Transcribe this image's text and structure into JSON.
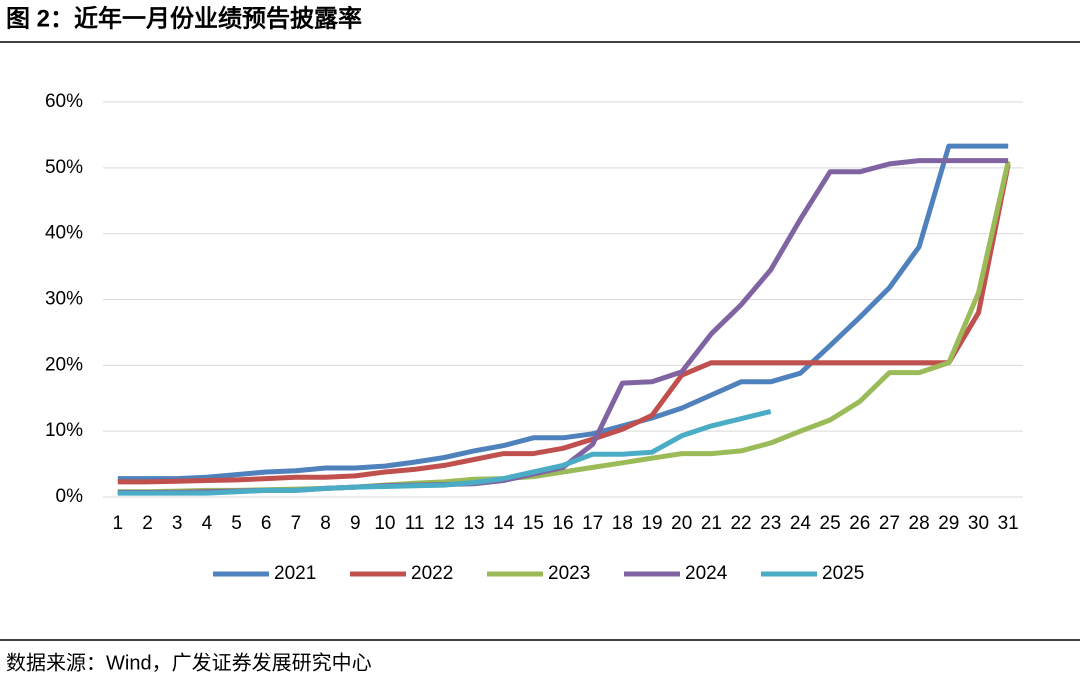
{
  "chart_data": {
    "type": "line",
    "title": "图 2：近年一月份业绩预告披露率",
    "source": "数据来源：Wind，广发证券发展研究中心",
    "categories": [
      "1",
      "2",
      "3",
      "4",
      "5",
      "6",
      "7",
      "8",
      "9",
      "10",
      "11",
      "12",
      "13",
      "14",
      "15",
      "16",
      "17",
      "18",
      "19",
      "20",
      "21",
      "22",
      "23",
      "24",
      "25",
      "26",
      "27",
      "28",
      "29",
      "30",
      "31"
    ],
    "series": [
      {
        "name": "2021",
        "color": "#4f81bd",
        "values": [
          2.8,
          2.8,
          2.8,
          3.0,
          3.4,
          3.8,
          4.0,
          4.4,
          4.4,
          4.7,
          5.3,
          6.0,
          7.0,
          7.8,
          9.0,
          9.0,
          9.6,
          10.8,
          12.0,
          13.5,
          15.5,
          17.5,
          17.5,
          18.8,
          23.0,
          27.3,
          31.8,
          38.0,
          53.3,
          53.3,
          53.3
        ]
      },
      {
        "name": "2022",
        "color": "#c0504d",
        "values": [
          2.3,
          2.3,
          2.4,
          2.5,
          2.6,
          2.8,
          3.0,
          3.0,
          3.2,
          3.8,
          4.2,
          4.8,
          5.7,
          6.6,
          6.6,
          7.4,
          8.8,
          10.3,
          12.4,
          18.5,
          20.4,
          20.4,
          20.4,
          20.4,
          20.4,
          20.4,
          20.4,
          20.4,
          20.4,
          28.0,
          50.5
        ]
      },
      {
        "name": "2023",
        "color": "#9bbb59",
        "values": [
          0.8,
          0.8,
          0.9,
          1.0,
          1.0,
          1.1,
          1.2,
          1.3,
          1.5,
          1.8,
          2.1,
          2.3,
          2.7,
          2.8,
          3.1,
          3.8,
          4.5,
          5.2,
          5.9,
          6.6,
          6.6,
          7.0,
          8.2,
          10.0,
          11.7,
          14.5,
          18.9,
          18.9,
          20.4,
          31.0,
          51.0
        ]
      },
      {
        "name": "2024",
        "color": "#8064a2",
        "values": [
          0.7,
          0.7,
          0.7,
          0.8,
          0.9,
          1.0,
          1.0,
          1.3,
          1.5,
          1.7,
          1.8,
          1.9,
          2.0,
          2.5,
          3.5,
          4.5,
          8.0,
          17.3,
          17.5,
          19.0,
          24.8,
          29.2,
          34.5,
          42.2,
          49.4,
          49.4,
          50.6,
          51.1,
          51.1,
          51.1,
          51.1
        ]
      },
      {
        "name": "2025",
        "color": "#4bacc6",
        "values": [
          0.6,
          0.6,
          0.6,
          0.6,
          0.8,
          1.0,
          1.0,
          1.3,
          1.5,
          1.6,
          1.7,
          1.8,
          2.2,
          2.8,
          3.8,
          4.8,
          6.5,
          6.5,
          6.8,
          9.3,
          10.8,
          11.9,
          13.0,
          null,
          null,
          null,
          null,
          null,
          null,
          null,
          null
        ]
      }
    ],
    "ylim": [
      0,
      60
    ],
    "yticks": [
      {
        "value": 0,
        "label": "0%"
      },
      {
        "value": 10,
        "label": "10%"
      },
      {
        "value": 20,
        "label": "20%"
      },
      {
        "value": 30,
        "label": "30%"
      },
      {
        "value": 40,
        "label": "40%"
      },
      {
        "value": 50,
        "label": "50%"
      },
      {
        "value": 60,
        "label": "60%"
      }
    ],
    "grid": true,
    "legend": "bottom"
  }
}
